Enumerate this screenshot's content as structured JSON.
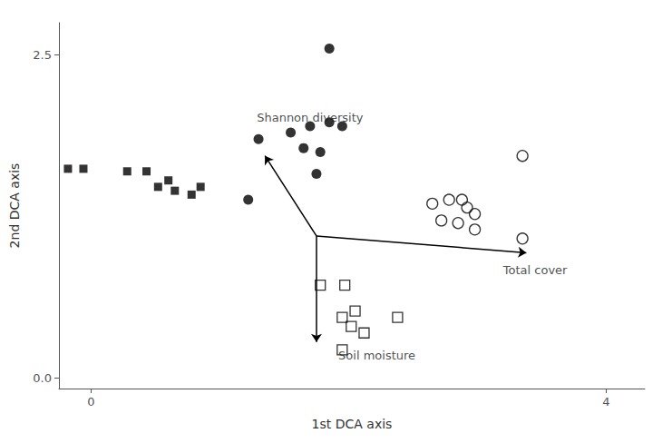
{
  "chart_data": {
    "type": "scatter",
    "xlabel": "1st DCA axis",
    "ylabel": "2nd DCA axis",
    "xlim": [
      -0.25,
      4.3
    ],
    "ylim": [
      -0.08,
      2.75
    ],
    "xticks": [
      0,
      4
    ],
    "yticks": [
      {
        "value": 0,
        "label": "0.0"
      },
      2.5
    ],
    "grid": false,
    "series": [
      {
        "marker": "circle",
        "color": "#000000",
        "x": [
          1.85,
          1.3,
          1.55,
          1.7,
          1.85,
          1.95,
          1.65,
          1.78,
          1.75,
          1.22
        ],
        "values": [
          2.55,
          1.85,
          1.9,
          1.95,
          1.98,
          1.95,
          1.78,
          1.75,
          1.58,
          1.38
        ]
      },
      {
        "marker": "square",
        "color": "#000000",
        "x": [
          -0.18,
          -0.06,
          0.28,
          0.43,
          0.52,
          0.6,
          0.65,
          0.78,
          0.85
        ],
        "values": [
          1.62,
          1.62,
          1.6,
          1.6,
          1.48,
          1.53,
          1.45,
          1.42,
          1.48
        ]
      },
      {
        "marker": "open_circle",
        "color": "#000000",
        "x": [
          3.35,
          2.65,
          2.78,
          2.88,
          2.92,
          2.98,
          2.72,
          2.85,
          2.98,
          3.35
        ],
        "values": [
          1.72,
          1.35,
          1.38,
          1.38,
          1.32,
          1.27,
          1.22,
          1.2,
          1.15,
          1.08
        ]
      },
      {
        "marker": "open_square",
        "color": "#000000",
        "x": [
          1.78,
          1.97,
          2.05,
          1.95,
          2.02,
          2.12,
          1.95,
          2.38
        ],
        "values": [
          0.72,
          0.72,
          0.52,
          0.47,
          0.4,
          0.35,
          0.22,
          0.47
        ]
      }
    ],
    "arrows": [
      {
        "from": [
          1.75,
          1.1
        ],
        "to": [
          1.35,
          1.72
        ],
        "color": "#000000"
      },
      {
        "from": [
          1.75,
          1.1
        ],
        "to": [
          1.75,
          0.28
        ],
        "color": "#000000"
      },
      {
        "from": [
          1.75,
          1.1
        ],
        "to": [
          3.38,
          0.97
        ],
        "color": "#000000"
      }
    ],
    "annotations": [
      {
        "text": "Shannon diversity",
        "x": 1.7,
        "y": 1.97,
        "color": "#222222"
      },
      {
        "text": "Soil moisture",
        "x": 1.92,
        "y": 0.22,
        "color": "#222222"
      },
      {
        "text": "Total cover",
        "x": 3.2,
        "y": 0.88,
        "color": "#222222"
      }
    ]
  }
}
